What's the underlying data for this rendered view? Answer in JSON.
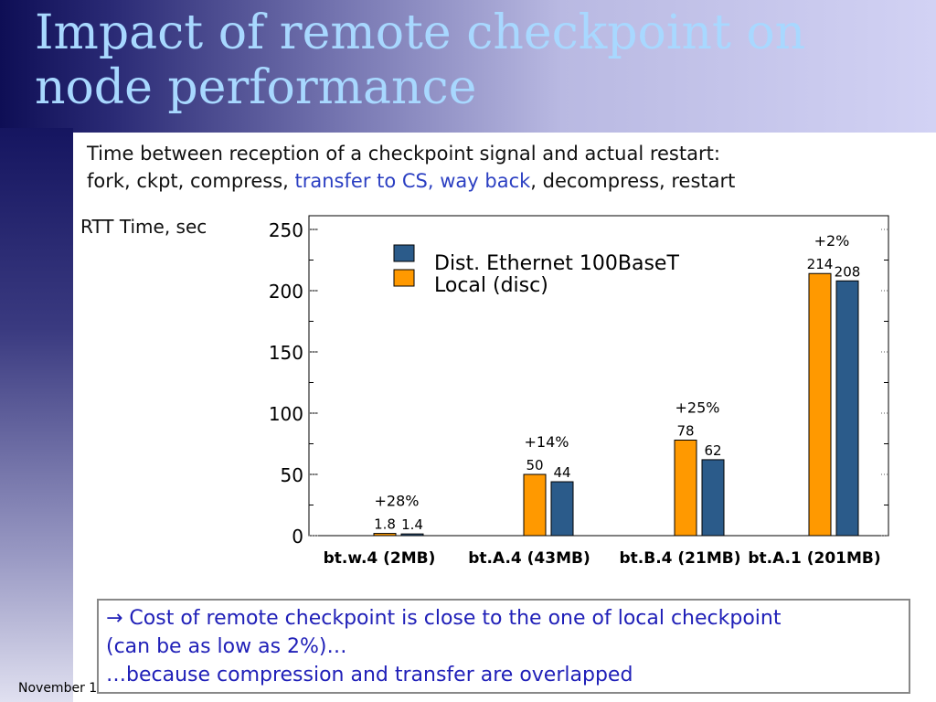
{
  "slide": {
    "title": "Impact of remote checkpoint on node performance",
    "desc": {
      "line1": "Time between reception of a checkpoint signal and actual restart:",
      "line2_prefix": "fork, ckpt, compress, ",
      "line2_highlight": "transfer to CS, way back",
      "line2_suffix": ", decompress, restart"
    },
    "y_unit": "RTT Time, sec",
    "note": {
      "line1": "→ Cost of remote checkpoint is close to the one of local checkpoint",
      "line2": "(can be as low as 2%)…",
      "line3": "…because compression and transfer are overlapped"
    },
    "footer": "November 1"
  },
  "colors": {
    "local": "#ff9900",
    "remote": "#2b5b8a",
    "highlight": "#2b3fc2",
    "note_text": "#2020b8",
    "title": "#a8d8ff"
  },
  "chart_data": {
    "type": "bar",
    "categories": [
      "bt.w.4 (2MB)",
      "bt.A.4 (43MB)",
      "bt.B.4 (21MB)",
      "bt.A.1 (201MB)"
    ],
    "series": [
      {
        "name": "Local (disc)",
        "values": [
          1.8,
          50,
          78,
          214
        ],
        "labels": [
          "1.8",
          "50",
          "78",
          "214"
        ]
      },
      {
        "name": "Dist. Ethernet 100BaseT",
        "values": [
          1.4,
          44,
          62,
          208
        ],
        "labels": [
          "1.4",
          "44",
          "62",
          "208"
        ]
      }
    ],
    "annotations": [
      "+28%",
      "+14%",
      "+25%",
      "+2%"
    ],
    "legend": [
      "Dist. Ethernet 100BaseT",
      "Local (disc)"
    ],
    "yticks": [
      "0",
      "50",
      "100",
      "150",
      "200",
      "250"
    ],
    "ylim": [
      0,
      250
    ],
    "legend_position": "top-left",
    "grid": false
  }
}
